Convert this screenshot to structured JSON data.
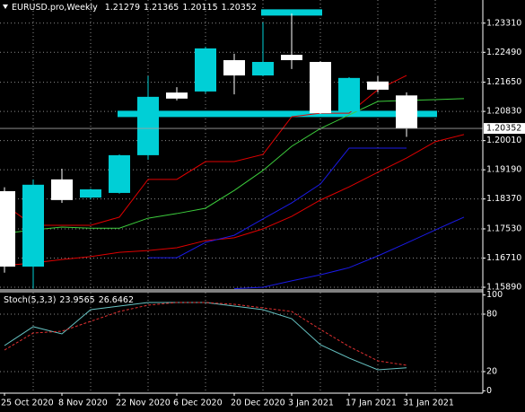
{
  "chart_data": {
    "type": "candlestick",
    "title": "EURUSD.pro,Weekly",
    "categories": [
      "25 Oct 2020",
      null,
      "8 Nov 2020",
      null,
      "22 Nov 2020",
      null,
      "6 Dec 2020",
      null,
      "20 Dec 2020",
      null,
      "3 Jan 2021",
      null,
      "17 Jan 2021",
      null,
      "31 Jan 2021",
      null,
      null
    ],
    "open": [
      1.1859,
      1.1647,
      1.1892,
      1.1841,
      1.1854,
      1.196,
      1.2136,
      1.2139,
      1.2227,
      1.2184,
      1.2242,
      1.2222,
      1.2083,
      1.2167,
      1.21279,
      null,
      null
    ],
    "high": [
      1.187,
      1.1892,
      1.1922,
      1.1866,
      1.1962,
      1.2182,
      1.2151,
      1.2265,
      1.2245,
      1.2333,
      1.2358,
      1.2224,
      1.2179,
      1.2182,
      1.21365,
      null,
      null
    ],
    "low": [
      1.163,
      1.1585,
      1.1826,
      1.1836,
      1.1852,
      1.1947,
      1.2114,
      1.2134,
      1.2131,
      1.2182,
      1.2202,
      1.2076,
      1.2081,
      1.2136,
      1.20115,
      null,
      null
    ],
    "close": [
      1.1647,
      1.1877,
      1.1834,
      1.1864,
      1.196,
      1.2124,
      1.2119,
      1.226,
      1.2184,
      1.2222,
      1.2227,
      1.2078,
      1.2177,
      1.2144,
      1.20352,
      null,
      null
    ],
    "bull_color": "#00cfd6",
    "bear_color": "#ffffff",
    "series": [
      {
        "color": "#e00000",
        "values": [
          1.1821,
          1.1763,
          1.1763,
          1.1763,
          1.1786,
          1.1892,
          1.1892,
          1.1942,
          1.1942,
          1.1962,
          1.2068,
          1.2078,
          1.2078,
          1.2144,
          1.2184,
          null,
          null
        ]
      },
      {
        "color": "#3ccc3c",
        "values": [
          1.174,
          1.175,
          1.1758,
          1.1755,
          1.1755,
          1.1783,
          1.1796,
          1.1811,
          1.1861,
          1.1917,
          1.1985,
          1.2035,
          1.2073,
          1.2111,
          1.2114,
          1.2116,
          1.2119
        ]
      },
      {
        "color": "#e00000",
        "values": [
          1.165,
          1.1657,
          1.1667,
          1.1675,
          1.1687,
          1.1692,
          1.17,
          1.172,
          1.1728,
          1.1753,
          1.1788,
          1.1834,
          1.1871,
          1.1912,
          1.1952,
          1.1998,
          1.2018
        ]
      },
      {
        "color": "#1a1ae6",
        "values": [
          null,
          null,
          null,
          null,
          null,
          1.1672,
          1.1672,
          1.1715,
          1.1735,
          1.1781,
          1.1826,
          1.1879,
          1.198,
          1.198,
          1.198,
          null,
          null
        ]
      },
      {
        "color": "#1a1ae6",
        "values": [
          null,
          null,
          null,
          null,
          null,
          null,
          null,
          null,
          1.1585,
          1.1589,
          1.1607,
          1.1624,
          1.1644,
          1.1677,
          1.1713,
          1.175,
          1.1786
        ]
      }
    ],
    "levels": [
      {
        "value": 1.2076,
        "from": 4,
        "to": 15,
        "color": "#00cfd6"
      },
      {
        "value": 1.2361,
        "from": 9,
        "to": 11,
        "color": "#00cfd6"
      }
    ],
    "ylim": [
      1.1584,
      1.2396
    ],
    "yticks": [
      {
        "value": 1.2331,
        "label": "1.23310"
      },
      {
        "value": 1.2249,
        "label": "1.22490"
      },
      {
        "value": 1.2165,
        "label": "1.21650"
      },
      {
        "value": 1.2083,
        "label": "1.20830"
      },
      {
        "value": 1.2001,
        "label": "1.20010"
      },
      {
        "value": 1.1919,
        "label": "1.19190"
      },
      {
        "value": 1.1837,
        "label": "1.18370"
      },
      {
        "value": 1.1753,
        "label": "1.17530"
      },
      {
        "value": 1.1671,
        "label": "1.16710"
      },
      {
        "value": 1.1589,
        "label": "1.15890"
      }
    ],
    "grid": true,
    "indicator": {
      "title": "Stoch(5,3,3)",
      "ylim": [
        -2.5,
        102.5
      ],
      "yticks": [
        100,
        80,
        20,
        0
      ],
      "series": [
        {
          "color": "#66c2c2",
          "values": [
            47.2,
            66.9,
            59.4,
            84.7,
            88.4,
            92.2,
            92.2,
            92.2,
            88.4,
            84.7,
            75.3,
            48.1,
            34.1,
            21.9,
            23.9565,
            null,
            null
          ]
        },
        {
          "color": "#e03030",
          "dashed": true,
          "values": [
            42.5,
            60.3,
            62.2,
            72.5,
            82.8,
            89.4,
            92.2,
            92.2,
            90.3,
            86.6,
            82.8,
            64.1,
            46.25,
            31.25,
            26.6462,
            null,
            null
          ]
        }
      ]
    }
  }
}
